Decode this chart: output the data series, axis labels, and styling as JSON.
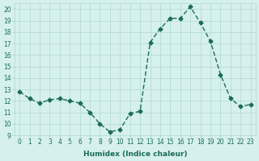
{
  "x": [
    0,
    1,
    2,
    3,
    4,
    5,
    6,
    7,
    8,
    9,
    10,
    11,
    12,
    13,
    14,
    15,
    16,
    17,
    18,
    19,
    20,
    21,
    22,
    23
  ],
  "y": [
    12.8,
    12.2,
    11.8,
    12.1,
    12.2,
    12.0,
    11.8,
    11.0,
    10.0,
    9.3,
    9.5,
    10.9,
    11.1,
    17.1,
    18.3,
    19.2,
    19.2,
    20.2,
    18.8,
    17.2,
    14.3,
    12.2,
    11.5,
    11.7
  ],
  "xlim": [
    -0.5,
    23.5
  ],
  "ylim": [
    9,
    20.5
  ],
  "yticks": [
    9,
    10,
    11,
    12,
    13,
    14,
    15,
    16,
    17,
    18,
    19,
    20
  ],
  "xticks": [
    0,
    1,
    2,
    3,
    4,
    5,
    6,
    7,
    8,
    9,
    10,
    11,
    12,
    13,
    14,
    15,
    16,
    17,
    18,
    19,
    20,
    21,
    22,
    23
  ],
  "xlabel": "Humidex (Indice chaleur)",
  "line_color": "#1a6b5a",
  "marker_color": "#1a6b5a",
  "bg_color": "#d6f0ee",
  "grid_color": "#b0d8d4",
  "font_color": "#1a6b5a"
}
